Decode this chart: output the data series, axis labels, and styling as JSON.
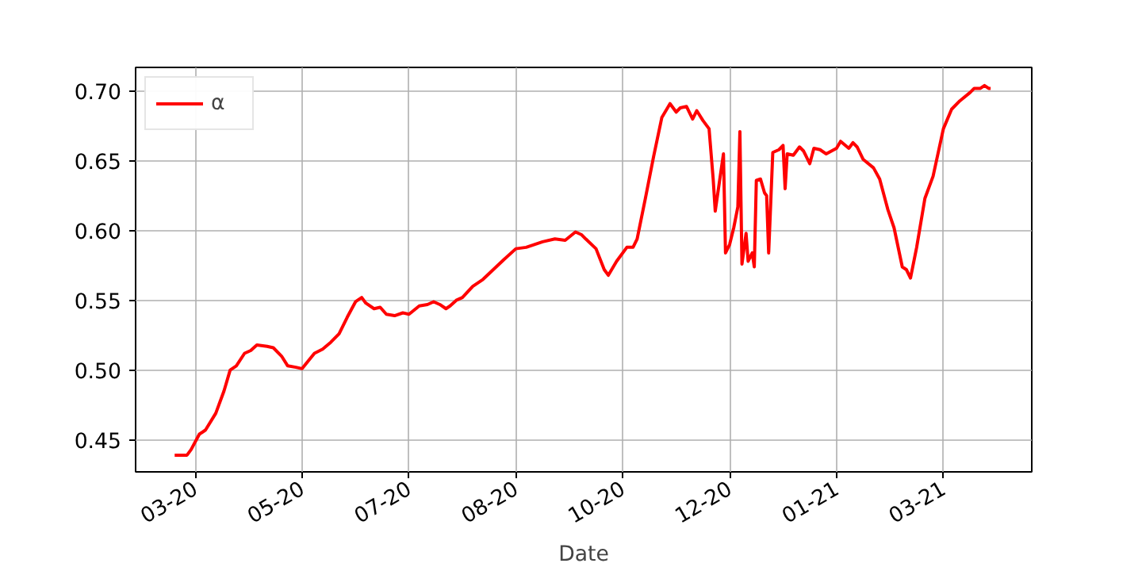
{
  "chart_data": {
    "type": "line",
    "xlabel": "Date",
    "x": [
      "2020-03-15",
      "2020-03-21",
      "2020-03-23",
      "2020-03-27",
      "2020-03-30",
      "2020-04-04",
      "2020-04-08",
      "2020-04-11",
      "2020-04-14",
      "2020-04-18",
      "2020-04-21",
      "2020-04-24",
      "2020-04-29",
      "2020-05-02",
      "2020-05-06",
      "2020-05-09",
      "2020-05-13",
      "2020-05-16",
      "2020-05-22",
      "2020-05-26",
      "2020-05-30",
      "2020-06-03",
      "2020-06-07",
      "2020-06-11",
      "2020-06-14",
      "2020-06-16",
      "2020-06-20",
      "2020-06-23",
      "2020-06-26",
      "2020-06-30",
      "2020-07-04",
      "2020-07-07",
      "2020-07-12",
      "2020-07-16",
      "2020-07-19",
      "2020-07-22",
      "2020-07-25",
      "2020-07-27",
      "2020-07-30",
      "2020-08-02",
      "2020-08-07",
      "2020-08-12",
      "2020-08-17",
      "2020-08-22",
      "2020-08-28",
      "2020-09-02",
      "2020-09-10",
      "2020-09-16",
      "2020-09-21",
      "2020-09-26",
      "2020-09-29",
      "2020-10-01",
      "2020-10-06",
      "2020-10-10",
      "2020-10-12",
      "2020-10-16",
      "2020-10-21",
      "2020-10-24",
      "2020-10-26",
      "2020-10-30",
      "2020-11-03",
      "2020-11-07",
      "2020-11-11",
      "2020-11-14",
      "2020-11-16",
      "2020-11-19",
      "2020-11-22",
      "2020-11-24",
      "2020-11-27",
      "2020-11-30",
      "2020-12-02",
      "2020-12-03",
      "2020-12-07",
      "2020-12-08",
      "2020-12-10",
      "2020-12-12",
      "2020-12-14",
      "2020-12-15",
      "2020-12-16",
      "2020-12-18",
      "2020-12-19",
      "2020-12-21",
      "2020-12-22",
      "2020-12-23",
      "2020-12-25",
      "2020-12-27",
      "2020-12-28",
      "2020-12-29",
      "2020-12-31",
      "2021-01-03",
      "2021-01-05",
      "2021-01-06",
      "2021-01-07",
      "2021-01-10",
      "2021-01-13",
      "2021-01-15",
      "2021-01-18",
      "2021-01-20",
      "2021-01-23",
      "2021-01-26",
      "2021-01-31",
      "2021-02-02",
      "2021-02-06",
      "2021-02-08",
      "2021-02-10",
      "2021-02-13",
      "2021-02-18",
      "2021-02-21",
      "2021-02-25",
      "2021-02-28",
      "2021-03-04",
      "2021-03-06",
      "2021-03-08",
      "2021-03-11",
      "2021-03-15",
      "2021-03-19",
      "2021-03-24",
      "2021-03-28",
      "2021-04-01",
      "2021-04-06",
      "2021-04-08",
      "2021-04-11",
      "2021-04-13",
      "2021-04-15",
      "2021-04-16"
    ],
    "series": [
      {
        "name": "α",
        "color": "#ff0000",
        "values": [
          0.439,
          0.439,
          0.443,
          0.454,
          0.457,
          0.469,
          0.485,
          0.5,
          0.503,
          0.512,
          0.514,
          0.518,
          0.517,
          0.516,
          0.51,
          0.503,
          0.502,
          0.501,
          0.512,
          0.515,
          0.52,
          0.526,
          0.538,
          0.549,
          0.552,
          0.548,
          0.544,
          0.545,
          0.54,
          0.539,
          0.541,
          0.54,
          0.546,
          0.547,
          0.549,
          0.547,
          0.544,
          0.546,
          0.55,
          0.552,
          0.56,
          0.565,
          0.572,
          0.579,
          0.587,
          0.588,
          0.592,
          0.594,
          0.593,
          0.599,
          0.597,
          0.594,
          0.587,
          0.572,
          0.568,
          0.578,
          0.588,
          0.588,
          0.594,
          0.623,
          0.653,
          0.681,
          0.691,
          0.685,
          0.688,
          0.689,
          0.68,
          0.686,
          0.679,
          0.673,
          0.637,
          0.614,
          0.655,
          0.584,
          0.59,
          0.602,
          0.617,
          0.671,
          0.576,
          0.598,
          0.578,
          0.584,
          0.574,
          0.636,
          0.637,
          0.627,
          0.625,
          0.584,
          0.656,
          0.658,
          0.661,
          0.63,
          0.655,
          0.654,
          0.66,
          0.657,
          0.648,
          0.659,
          0.658,
          0.655,
          0.659,
          0.664,
          0.659,
          0.663,
          0.66,
          0.651,
          0.645,
          0.637,
          0.615,
          0.602,
          0.574,
          0.572,
          0.566,
          0.588,
          0.623,
          0.639,
          0.673,
          0.687,
          0.693,
          0.699,
          0.702,
          0.702,
          0.704,
          0.702,
          0.702
        ]
      }
    ],
    "xlim": [
      "2020-02-25",
      "2021-05-06"
    ],
    "xticks": [
      {
        "value": "2020-03-25",
        "label": "03-20"
      },
      {
        "value": "2020-05-16",
        "label": "05-20"
      },
      {
        "value": "2020-07-07",
        "label": "07-20"
      },
      {
        "value": "2020-08-28",
        "label": "08-20"
      },
      {
        "value": "2020-10-19",
        "label": "10-20"
      },
      {
        "value": "2020-12-10",
        "label": "12-20"
      },
      {
        "value": "2021-01-31",
        "label": "01-21"
      },
      {
        "value": "2021-03-24",
        "label": "03-21"
      }
    ],
    "ylim": [
      0.427,
      0.717
    ],
    "yticks": [
      0.45,
      {
        "value": 0.5,
        "label": "0.50"
      },
      0.55,
      {
        "value": 0.6,
        "label": "0.60"
      },
      0.65,
      {
        "value": 0.7,
        "label": "0.70"
      }
    ],
    "grid": true,
    "legend": "top left",
    "marker": "none",
    "line_style": "solid"
  }
}
